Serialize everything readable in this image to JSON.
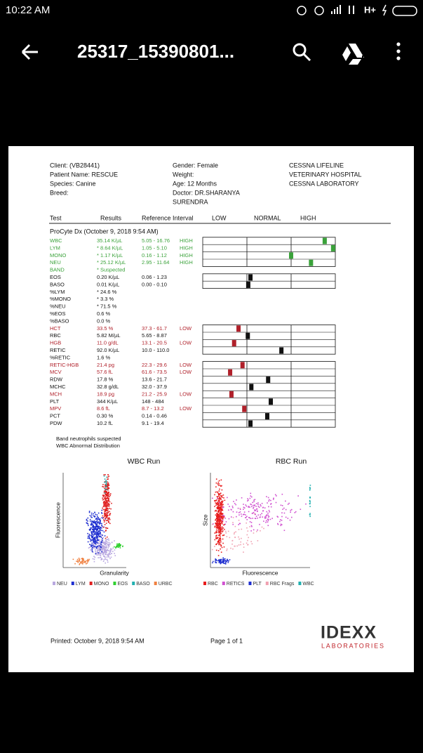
{
  "status_bar": {
    "time": "10:22 AM"
  },
  "toolbar": {
    "title": "25317_15390801..."
  },
  "report": {
    "header": {
      "left": [
        "Client:  (VB28441)",
        "Patient Name: RESCUE",
        "Species: Canine",
        "Breed:"
      ],
      "middle": [
        "Gender: Female",
        "Weight:",
        "Age: 12 Months",
        "Doctor: DR.SHARANYA",
        "SURENDRA"
      ],
      "right": [
        "CESSNA LIFELINE",
        "VETERINARY HOSPITAL",
        "CESSNA LABORATORY"
      ]
    },
    "columns": [
      "Test",
      "Results",
      "Reference Interval",
      "LOW",
      "NORMAL",
      "HIGH"
    ],
    "section": "ProCyte Dx (October 9, 2018 9:54 AM)",
    "rows": [
      {
        "test": "WBC",
        "result": "35.14 K/µL",
        "reference": "5.05 - 16.76",
        "flag": "HIGH",
        "marker": 2.76,
        "color": "#3aa23a"
      },
      {
        "test": "LYM",
        "result": "* 8.64 K/µL",
        "reference": "1.05 - 5.10",
        "flag": "HIGH",
        "marker": 2.95,
        "color": "#3aa23a"
      },
      {
        "test": "MONO",
        "result": "* 1.17 K/µL",
        "reference": "0.16 - 1.12",
        "flag": "HIGH",
        "marker": 2.0,
        "color": "#3aa23a"
      },
      {
        "test": "NEU",
        "result": "* 25.12 K/µL",
        "reference": "2.95 - 11.64",
        "flag": "HIGH",
        "marker": 2.45,
        "color": "#3aa23a"
      },
      {
        "test": "BAND",
        "result": "* Suspected",
        "color": "#3aa23a"
      },
      {
        "test": "EOS",
        "result": "0.20 K/µL",
        "reference": "0.06 - 1.23",
        "marker": 1.08,
        "color": "#111111"
      },
      {
        "test": "BASO",
        "result": "0.01 K/µL",
        "reference": "0.00 - 0.10",
        "marker": 1.03,
        "color": "#111111"
      },
      {
        "test": "%LYM",
        "result": "* 24.6 %",
        "color": "#111111"
      },
      {
        "test": "%MONO",
        "result": "* 3.3 %",
        "color": "#111111"
      },
      {
        "test": "%NEU",
        "result": "* 71.5 %",
        "color": "#111111"
      },
      {
        "test": "%EOS",
        "result": "0.6 %",
        "color": "#111111"
      },
      {
        "test": "%BASO",
        "result": "0.0 %",
        "color": "#111111"
      },
      {
        "test": "HCT",
        "result": "33.5 %",
        "reference": "37.3 - 61.7",
        "flag": "LOW",
        "marker": 0.81,
        "color": "#b0202a"
      },
      {
        "test": "RBC",
        "result": "5.82 M/µL",
        "reference": "5.65 - 8.87",
        "marker": 1.02,
        "color": "#111111"
      },
      {
        "test": "HGB",
        "result": "11.0 g/dL",
        "reference": "13.1 - 20.5",
        "flag": "LOW",
        "marker": 0.71,
        "color": "#b0202a"
      },
      {
        "test": "RETIC",
        "result": "92.0 K/µL",
        "reference": "10.0 - 110.0",
        "marker": 1.78,
        "color": "#111111"
      },
      {
        "test": "%RETIC",
        "result": "1.6 %",
        "color": "#111111"
      },
      {
        "test": "RETIC-HGB",
        "result": "21.4 pg",
        "reference": "22.3 - 29.6",
        "flag": "LOW",
        "marker": 0.9,
        "color": "#b0202a"
      },
      {
        "test": "MCV",
        "result": "57.6 fL",
        "reference": "61.6 - 73.5",
        "flag": "LOW",
        "marker": 0.62,
        "color": "#b0202a"
      },
      {
        "test": "RDW",
        "result": "17.8 %",
        "reference": "13.6 - 21.7",
        "marker": 1.48,
        "color": "#111111"
      },
      {
        "test": "MCHC",
        "result": "32.8 g/dL",
        "reference": "32.0 - 37.9",
        "marker": 1.1,
        "color": "#111111"
      },
      {
        "test": "MCH",
        "result": "18.9 pg",
        "reference": "21.2 - 25.9",
        "flag": "LOW",
        "marker": 0.65,
        "color": "#b0202a"
      },
      {
        "test": "PLT",
        "result": "344 K/µL",
        "reference": "148 - 484",
        "marker": 1.54,
        "color": "#111111"
      },
      {
        "test": "MPV",
        "result": "8.6 fL",
        "reference": "8.7 - 13.2",
        "flag": "LOW",
        "marker": 0.94,
        "color": "#b0202a"
      },
      {
        "test": "PCT",
        "result": "0.30 %",
        "reference": "0.14 - 0.46",
        "marker": 1.46,
        "color": "#111111"
      },
      {
        "test": "PDW",
        "result": "10.2 fL",
        "reference": "9.1 - 19.4",
        "marker": 1.08,
        "color": "#111111"
      }
    ],
    "notes": [
      "Band neutrophils suspected",
      "WBC Abnormal Distribution"
    ],
    "plots": [
      {
        "title": "WBC Run",
        "y_label": "Fluorescence",
        "x_label": "Granularity",
        "legend": [
          {
            "name": "NEU",
            "color": "#b9a8e0"
          },
          {
            "name": "LYM",
            "color": "#1f2fd0"
          },
          {
            "name": "MONO",
            "color": "#e02020"
          },
          {
            "name": "EOS",
            "color": "#30d030"
          },
          {
            "name": "BASO",
            "color": "#20b0b0"
          },
          {
            "name": "URBC",
            "color": "#f08040"
          }
        ]
      },
      {
        "title": "RBC Run",
        "y_label": "Size",
        "x_label": "Fluorescence",
        "legend": [
          {
            "name": "RBC",
            "color": "#e81c1c"
          },
          {
            "name": "RETICS",
            "color": "#d050d0"
          },
          {
            "name": "PLT",
            "color": "#1f2fd0"
          },
          {
            "name": "RBC Frags",
            "color": "#f0a0b0"
          },
          {
            "name": "WBC",
            "color": "#20b0b0"
          }
        ]
      }
    ],
    "footer": {
      "printed": "Printed: October 9, 2018 9:54 AM",
      "page": "Page 1 of 1",
      "logo": "IDEXX",
      "logo_sub": "LABORATORIES"
    }
  }
}
